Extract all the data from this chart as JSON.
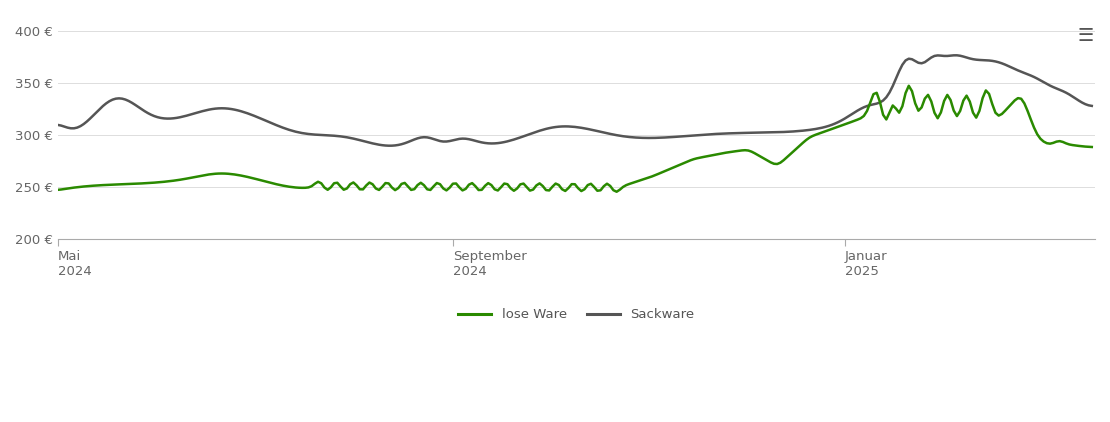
{
  "background_color": "#ffffff",
  "grid_color": "#dddddd",
  "ylim": [
    200,
    415
  ],
  "yticks": [
    200,
    250,
    300,
    350,
    400
  ],
  "ytick_labels": [
    "200 €",
    "250 €",
    "300 €",
    "350 €",
    "400 €"
  ],
  "line_lose_color": "#2a8a00",
  "line_sack_color": "#555555",
  "line_width": 1.8,
  "legend_lose": "lose Ware",
  "legend_sack": "Sackware",
  "menu_icon_color": "#555555"
}
